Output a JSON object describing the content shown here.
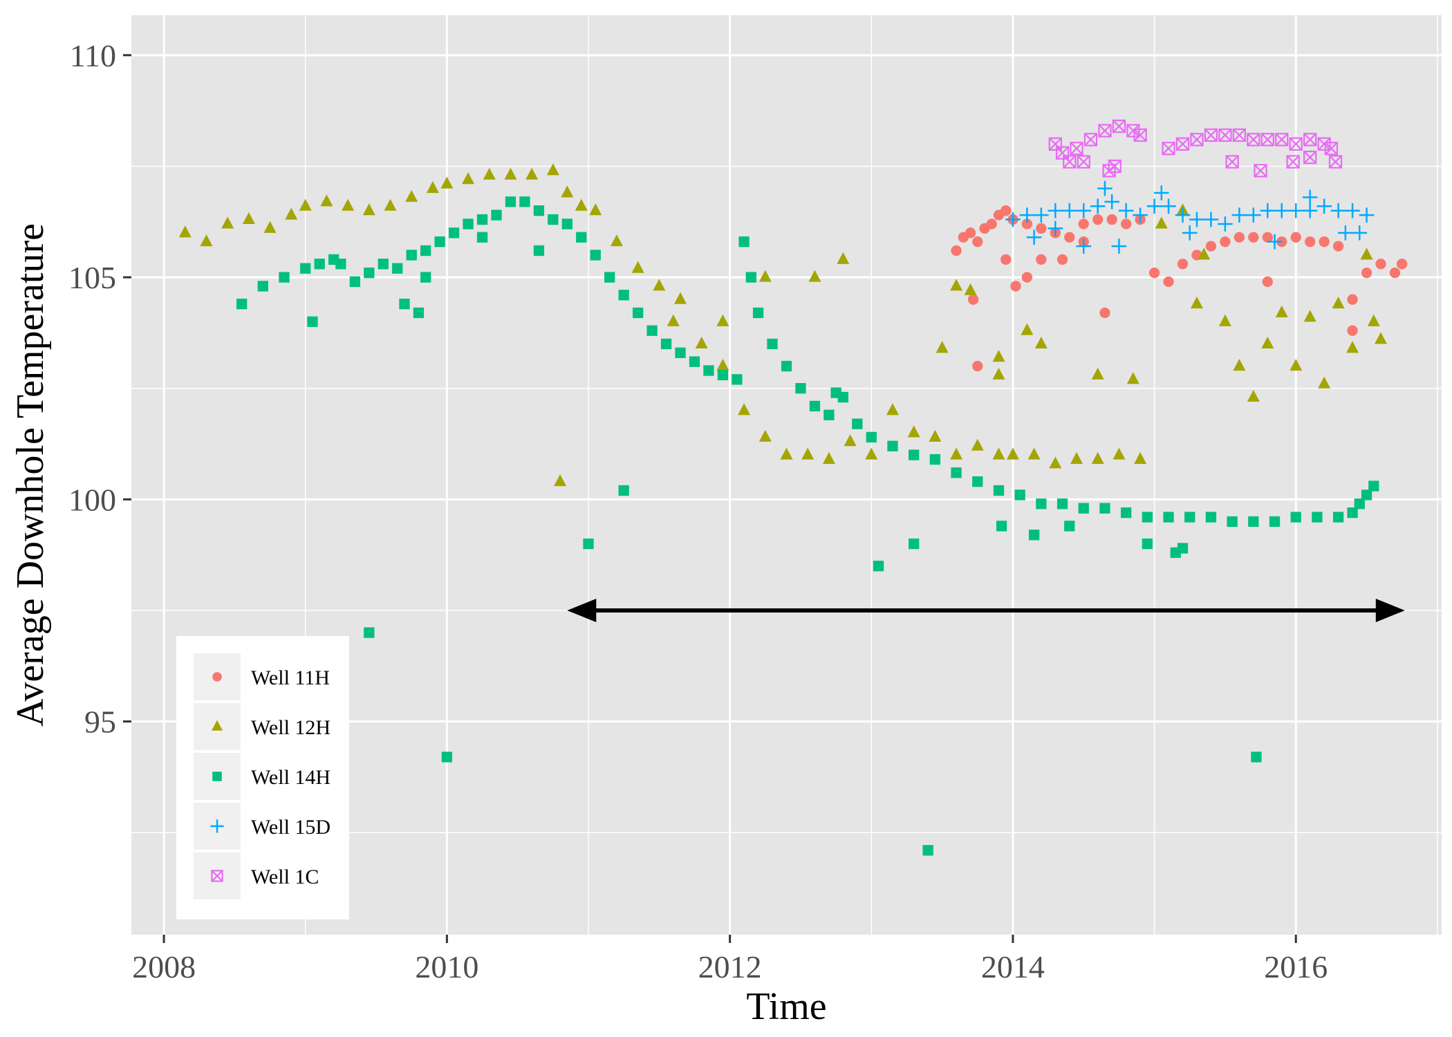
{
  "chart_data": {
    "type": "scatter",
    "title": "",
    "xlabel": "Time",
    "ylabel": "Average Downhole Temperature",
    "xlim": [
      2007.77,
      2017.03
    ],
    "ylim": [
      90.2,
      110.9
    ],
    "x_ticks": [
      2008,
      2010,
      2012,
      2014,
      2016
    ],
    "y_ticks": [
      95,
      100,
      105,
      110
    ],
    "grid": true,
    "legend_position": "bottom-left",
    "background": "#e5e5e5",
    "series": [
      {
        "name": "Well 11H",
        "marker": "circle",
        "color": "#f8766d",
        "values": [
          [
            2013.6,
            105.6
          ],
          [
            2013.65,
            105.9
          ],
          [
            2013.7,
            106.0
          ],
          [
            2013.75,
            105.8
          ],
          [
            2013.8,
            106.1
          ],
          [
            2013.85,
            106.2
          ],
          [
            2013.9,
            106.4
          ],
          [
            2013.95,
            106.5
          ],
          [
            2014.0,
            106.3
          ],
          [
            2014.1,
            106.2
          ],
          [
            2014.2,
            106.1
          ],
          [
            2014.3,
            106.0
          ],
          [
            2014.4,
            105.9
          ],
          [
            2014.5,
            106.2
          ],
          [
            2014.6,
            106.3
          ],
          [
            2014.7,
            106.3
          ],
          [
            2014.8,
            106.2
          ],
          [
            2014.9,
            106.3
          ],
          [
            2015.0,
            105.1
          ],
          [
            2015.1,
            104.9
          ],
          [
            2015.2,
            105.3
          ],
          [
            2015.3,
            105.5
          ],
          [
            2015.4,
            105.7
          ],
          [
            2015.5,
            105.8
          ],
          [
            2015.6,
            105.9
          ],
          [
            2015.7,
            105.9
          ],
          [
            2015.8,
            105.9
          ],
          [
            2015.9,
            105.8
          ],
          [
            2016.0,
            105.9
          ],
          [
            2016.1,
            105.8
          ],
          [
            2016.2,
            105.8
          ],
          [
            2016.3,
            105.7
          ],
          [
            2016.4,
            104.5
          ],
          [
            2016.5,
            105.1
          ],
          [
            2016.6,
            105.3
          ],
          [
            2016.7,
            105.1
          ],
          [
            2016.75,
            105.3
          ],
          [
            2013.72,
            104.5
          ],
          [
            2013.75,
            103.0
          ],
          [
            2014.02,
            104.8
          ],
          [
            2014.2,
            105.4
          ],
          [
            2014.35,
            105.4
          ],
          [
            2014.65,
            104.2
          ],
          [
            2015.8,
            104.9
          ],
          [
            2016.4,
            103.8
          ],
          [
            2014.5,
            105.8
          ],
          [
            2013.95,
            105.4
          ],
          [
            2014.1,
            105.0
          ]
        ]
      },
      {
        "name": "Well 12H",
        "marker": "triangle",
        "color": "#a3a500",
        "values": [
          [
            2008.15,
            106.0
          ],
          [
            2008.3,
            105.8
          ],
          [
            2008.45,
            106.2
          ],
          [
            2008.6,
            106.3
          ],
          [
            2008.75,
            106.1
          ],
          [
            2008.9,
            106.4
          ],
          [
            2009.0,
            106.6
          ],
          [
            2009.15,
            106.7
          ],
          [
            2009.3,
            106.6
          ],
          [
            2009.45,
            106.5
          ],
          [
            2009.6,
            106.6
          ],
          [
            2009.75,
            106.8
          ],
          [
            2009.9,
            107.0
          ],
          [
            2010.0,
            107.1
          ],
          [
            2010.15,
            107.2
          ],
          [
            2010.3,
            107.3
          ],
          [
            2010.45,
            107.3
          ],
          [
            2010.6,
            107.3
          ],
          [
            2010.75,
            107.4
          ],
          [
            2010.85,
            106.9
          ],
          [
            2010.95,
            106.6
          ],
          [
            2011.05,
            106.5
          ],
          [
            2011.2,
            105.8
          ],
          [
            2011.35,
            105.2
          ],
          [
            2011.5,
            104.8
          ],
          [
            2011.65,
            104.5
          ],
          [
            2011.8,
            103.5
          ],
          [
            2011.95,
            103.0
          ],
          [
            2012.1,
            102.0
          ],
          [
            2012.25,
            101.4
          ],
          [
            2012.4,
            101.0
          ],
          [
            2012.55,
            101.0
          ],
          [
            2012.7,
            100.9
          ],
          [
            2012.85,
            101.3
          ],
          [
            2013.0,
            101.0
          ],
          [
            2013.15,
            102.0
          ],
          [
            2013.3,
            101.5
          ],
          [
            2013.45,
            101.4
          ],
          [
            2013.6,
            101.0
          ],
          [
            2013.75,
            101.2
          ],
          [
            2013.9,
            101.0
          ],
          [
            2014.0,
            101.0
          ],
          [
            2014.15,
            101.0
          ],
          [
            2014.3,
            100.8
          ],
          [
            2014.45,
            100.9
          ],
          [
            2014.6,
            100.9
          ],
          [
            2014.75,
            101.0
          ],
          [
            2014.9,
            100.9
          ],
          [
            2010.8,
            100.4
          ],
          [
            2011.6,
            104.0
          ],
          [
            2011.95,
            104.0
          ],
          [
            2012.25,
            105.0
          ],
          [
            2012.6,
            105.0
          ],
          [
            2012.8,
            105.4
          ],
          [
            2013.5,
            103.4
          ],
          [
            2013.7,
            104.7
          ],
          [
            2013.9,
            103.2
          ],
          [
            2014.1,
            103.8
          ],
          [
            2014.6,
            102.8
          ],
          [
            2014.85,
            102.7
          ],
          [
            2015.05,
            106.2
          ],
          [
            2015.2,
            106.5
          ],
          [
            2015.35,
            105.5
          ],
          [
            2015.5,
            104.0
          ],
          [
            2015.6,
            103.0
          ],
          [
            2015.7,
            102.3
          ],
          [
            2015.8,
            103.5
          ],
          [
            2015.9,
            104.2
          ],
          [
            2016.0,
            103.0
          ],
          [
            2016.1,
            104.1
          ],
          [
            2016.2,
            102.6
          ],
          [
            2016.3,
            104.4
          ],
          [
            2016.4,
            103.4
          ],
          [
            2016.5,
            105.5
          ],
          [
            2016.55,
            104.0
          ],
          [
            2015.3,
            104.4
          ],
          [
            2016.6,
            103.6
          ],
          [
            2013.6,
            104.8
          ],
          [
            2013.9,
            102.8
          ],
          [
            2014.2,
            103.5
          ]
        ]
      },
      {
        "name": "Well 14H",
        "marker": "square",
        "color": "#00bf7d",
        "values": [
          [
            2008.55,
            104.4
          ],
          [
            2008.7,
            104.8
          ],
          [
            2008.85,
            105.0
          ],
          [
            2009.0,
            105.2
          ],
          [
            2009.1,
            105.3
          ],
          [
            2009.2,
            105.4
          ],
          [
            2009.25,
            105.3
          ],
          [
            2009.35,
            104.9
          ],
          [
            2009.45,
            105.1
          ],
          [
            2009.55,
            105.3
          ],
          [
            2009.65,
            105.2
          ],
          [
            2009.75,
            105.5
          ],
          [
            2009.85,
            105.6
          ],
          [
            2009.95,
            105.8
          ],
          [
            2010.05,
            106.0
          ],
          [
            2010.15,
            106.2
          ],
          [
            2010.25,
            106.3
          ],
          [
            2010.35,
            106.4
          ],
          [
            2010.45,
            106.7
          ],
          [
            2010.55,
            106.7
          ],
          [
            2010.65,
            106.5
          ],
          [
            2010.75,
            106.3
          ],
          [
            2010.85,
            106.2
          ],
          [
            2010.95,
            105.9
          ],
          [
            2011.05,
            105.5
          ],
          [
            2011.15,
            105.0
          ],
          [
            2011.25,
            104.6
          ],
          [
            2011.35,
            104.2
          ],
          [
            2011.45,
            103.8
          ],
          [
            2011.55,
            103.5
          ],
          [
            2011.65,
            103.3
          ],
          [
            2011.75,
            103.1
          ],
          [
            2011.85,
            102.9
          ],
          [
            2011.95,
            102.8
          ],
          [
            2012.05,
            102.7
          ],
          [
            2012.1,
            105.8
          ],
          [
            2012.15,
            105.0
          ],
          [
            2012.2,
            104.2
          ],
          [
            2012.3,
            103.5
          ],
          [
            2012.4,
            103.0
          ],
          [
            2012.5,
            102.5
          ],
          [
            2012.6,
            102.1
          ],
          [
            2012.7,
            101.9
          ],
          [
            2012.8,
            102.3
          ],
          [
            2012.9,
            101.7
          ],
          [
            2013.0,
            101.4
          ],
          [
            2013.15,
            101.2
          ],
          [
            2013.3,
            101.0
          ],
          [
            2013.45,
            100.9
          ],
          [
            2013.6,
            100.6
          ],
          [
            2013.75,
            100.4
          ],
          [
            2013.9,
            100.2
          ],
          [
            2014.05,
            100.1
          ],
          [
            2014.2,
            99.9
          ],
          [
            2014.35,
            99.9
          ],
          [
            2014.5,
            99.8
          ],
          [
            2014.65,
            99.8
          ],
          [
            2014.8,
            99.7
          ],
          [
            2014.95,
            99.6
          ],
          [
            2015.1,
            99.6
          ],
          [
            2015.25,
            99.6
          ],
          [
            2015.4,
            99.6
          ],
          [
            2015.55,
            99.5
          ],
          [
            2015.7,
            99.5
          ],
          [
            2015.85,
            99.5
          ],
          [
            2016.0,
            99.6
          ],
          [
            2016.15,
            99.6
          ],
          [
            2016.3,
            99.6
          ],
          [
            2016.4,
            99.7
          ],
          [
            2016.45,
            99.9
          ],
          [
            2016.5,
            100.1
          ],
          [
            2016.55,
            100.3
          ],
          [
            2009.05,
            104.0
          ],
          [
            2009.7,
            104.4
          ],
          [
            2009.8,
            104.2
          ],
          [
            2009.85,
            105.0
          ],
          [
            2010.25,
            105.9
          ],
          [
            2010.65,
            105.6
          ],
          [
            2010.0,
            94.2
          ],
          [
            2009.45,
            97.0
          ],
          [
            2011.0,
            99.0
          ],
          [
            2011.25,
            100.2
          ],
          [
            2013.05,
            98.5
          ],
          [
            2013.3,
            99.0
          ],
          [
            2013.4,
            92.1
          ],
          [
            2013.92,
            99.4
          ],
          [
            2014.15,
            99.2
          ],
          [
            2014.4,
            99.4
          ],
          [
            2014.95,
            99.0
          ],
          [
            2015.15,
            98.8
          ],
          [
            2015.2,
            98.9
          ],
          [
            2015.72,
            94.2
          ],
          [
            2012.75,
            102.4
          ]
        ]
      },
      {
        "name": "Well 15D",
        "marker": "plus",
        "color": "#00a9ff",
        "values": [
          [
            2014.0,
            106.3
          ],
          [
            2014.1,
            106.4
          ],
          [
            2014.2,
            106.4
          ],
          [
            2014.3,
            106.5
          ],
          [
            2014.4,
            106.5
          ],
          [
            2014.5,
            106.5
          ],
          [
            2014.6,
            106.6
          ],
          [
            2014.7,
            106.7
          ],
          [
            2014.8,
            106.5
          ],
          [
            2014.9,
            106.4
          ],
          [
            2015.0,
            106.6
          ],
          [
            2015.05,
            106.9
          ],
          [
            2015.1,
            106.6
          ],
          [
            2015.2,
            106.4
          ],
          [
            2015.3,
            106.3
          ],
          [
            2015.4,
            106.3
          ],
          [
            2015.5,
            106.2
          ],
          [
            2015.6,
            106.4
          ],
          [
            2015.7,
            106.4
          ],
          [
            2015.8,
            106.5
          ],
          [
            2015.9,
            106.5
          ],
          [
            2016.0,
            106.5
          ],
          [
            2016.1,
            106.5
          ],
          [
            2016.2,
            106.6
          ],
          [
            2016.3,
            106.5
          ],
          [
            2016.4,
            106.5
          ],
          [
            2016.5,
            106.4
          ],
          [
            2014.15,
            105.9
          ],
          [
            2014.3,
            106.1
          ],
          [
            2014.5,
            105.7
          ],
          [
            2014.75,
            105.7
          ],
          [
            2014.65,
            107.0
          ],
          [
            2015.25,
            106.0
          ],
          [
            2015.85,
            105.8
          ],
          [
            2016.1,
            106.8
          ],
          [
            2016.35,
            106.0
          ],
          [
            2016.45,
            106.0
          ]
        ]
      },
      {
        "name": "Well 1C",
        "marker": "boxx",
        "color": "#e76bf3",
        "values": [
          [
            2014.3,
            108.0
          ],
          [
            2014.35,
            107.8
          ],
          [
            2014.45,
            107.9
          ],
          [
            2014.55,
            108.1
          ],
          [
            2014.65,
            108.3
          ],
          [
            2014.75,
            108.4
          ],
          [
            2014.85,
            108.3
          ],
          [
            2014.9,
            108.2
          ],
          [
            2015.1,
            107.9
          ],
          [
            2015.2,
            108.0
          ],
          [
            2015.3,
            108.1
          ],
          [
            2015.4,
            108.2
          ],
          [
            2015.5,
            108.2
          ],
          [
            2015.6,
            108.2
          ],
          [
            2015.7,
            108.1
          ],
          [
            2015.8,
            108.1
          ],
          [
            2015.9,
            108.1
          ],
          [
            2016.0,
            108.0
          ],
          [
            2016.1,
            108.1
          ],
          [
            2016.2,
            108.0
          ],
          [
            2016.25,
            107.9
          ],
          [
            2014.4,
            107.6
          ],
          [
            2014.5,
            107.6
          ],
          [
            2014.68,
            107.4
          ],
          [
            2014.72,
            107.5
          ],
          [
            2015.55,
            107.6
          ],
          [
            2015.75,
            107.4
          ],
          [
            2015.98,
            107.6
          ],
          [
            2016.1,
            107.7
          ],
          [
            2016.28,
            107.6
          ]
        ]
      }
    ],
    "annotations": [
      {
        "type": "double-arrow",
        "x_start": 2010.85,
        "x_end": 2016.77,
        "y": 97.5,
        "color": "#000000"
      }
    ]
  }
}
